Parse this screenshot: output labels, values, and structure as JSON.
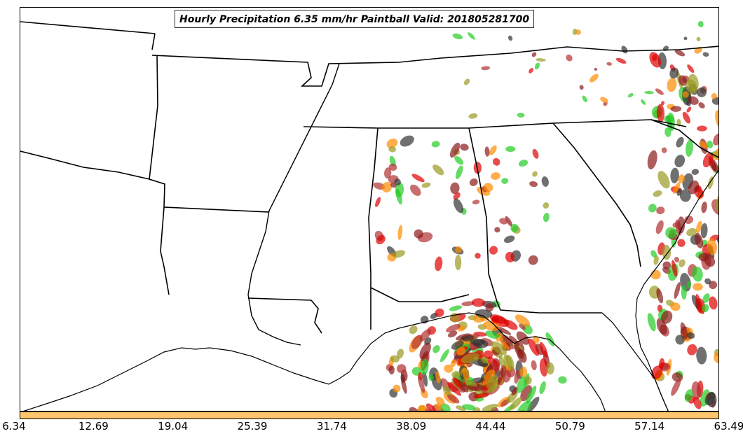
{
  "title": "Hourly Precipitation 6.35 mm/hr Paintball Valid: 201805281700",
  "colorbar": {
    "color": "#ffc66e",
    "ticks": [
      "6.34",
      "12.69",
      "19.04",
      "25.39",
      "31.74",
      "38.09",
      "44.44",
      "50.79",
      "57.14",
      "63.49"
    ]
  },
  "member_colors": [
    "#e00000",
    "#ff8c00",
    "#8b1a1a",
    "#22cc22",
    "#9a9a22",
    "#333333",
    "#b03030"
  ]
}
